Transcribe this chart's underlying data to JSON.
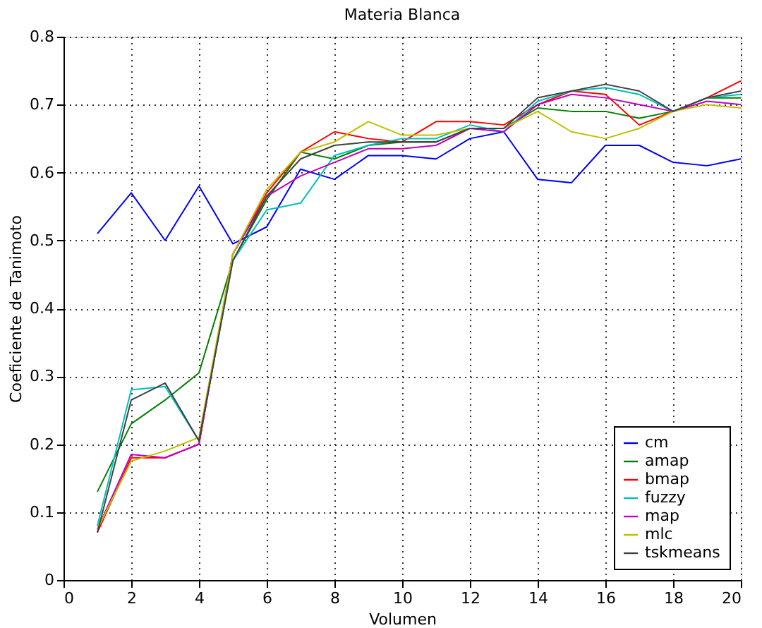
{
  "chart_data": {
    "type": "line",
    "title": "Materia Blanca",
    "xlabel": "Volumen",
    "ylabel": "Coeficiente de Tanimoto",
    "x": [
      1,
      2,
      3,
      4,
      5,
      6,
      7,
      8,
      9,
      10,
      11,
      12,
      13,
      14,
      15,
      16,
      17,
      18,
      19,
      20
    ],
    "series": [
      {
        "name": "cm",
        "color": "#0000ff",
        "values": [
          0.51,
          0.57,
          0.5,
          0.58,
          0.495,
          0.52,
          0.605,
          0.59,
          0.625,
          0.625,
          0.62,
          0.65,
          0.66,
          0.59,
          0.585,
          0.64,
          0.64,
          0.615,
          0.61,
          0.62
        ]
      },
      {
        "name": "amap",
        "color": "#008000",
        "values": [
          0.13,
          0.23,
          0.265,
          0.305,
          0.47,
          0.56,
          0.63,
          0.62,
          0.64,
          0.645,
          0.645,
          0.665,
          0.665,
          0.695,
          0.69,
          0.69,
          0.68,
          0.69,
          0.71,
          0.71
        ]
      },
      {
        "name": "bmap",
        "color": "#ff0000",
        "values": [
          0.07,
          0.18,
          0.18,
          0.2,
          0.48,
          0.57,
          0.63,
          0.66,
          0.65,
          0.645,
          0.675,
          0.675,
          0.67,
          0.7,
          0.72,
          0.715,
          0.67,
          0.69,
          0.71,
          0.735
        ]
      },
      {
        "name": "fuzzy",
        "color": "#00bfbf",
        "values": [
          0.08,
          0.28,
          0.285,
          0.205,
          0.47,
          0.545,
          0.555,
          0.625,
          0.64,
          0.65,
          0.65,
          0.67,
          0.66,
          0.705,
          0.72,
          0.725,
          0.715,
          0.69,
          0.71,
          0.715
        ]
      },
      {
        "name": "map",
        "color": "#bf00bf",
        "values": [
          0.075,
          0.185,
          0.18,
          0.2,
          0.48,
          0.565,
          0.595,
          0.615,
          0.635,
          0.635,
          0.64,
          0.665,
          0.66,
          0.7,
          0.715,
          0.71,
          0.7,
          0.69,
          0.705,
          0.7
        ]
      },
      {
        "name": "mlc",
        "color": "#bfbf00",
        "values": [
          0.075,
          0.175,
          0.19,
          0.21,
          0.48,
          0.575,
          0.63,
          0.645,
          0.675,
          0.655,
          0.655,
          0.665,
          0.665,
          0.69,
          0.66,
          0.65,
          0.665,
          0.69,
          0.7,
          0.695
        ]
      },
      {
        "name": "tskmeans",
        "color": "#404040",
        "values": [
          0.07,
          0.265,
          0.29,
          0.205,
          0.47,
          0.565,
          0.62,
          0.64,
          0.645,
          0.645,
          0.645,
          0.665,
          0.665,
          0.71,
          0.72,
          0.73,
          0.72,
          0.69,
          0.71,
          0.72
        ]
      }
    ],
    "xlim": [
      0,
      20
    ],
    "xticks": [
      0,
      2,
      4,
      6,
      8,
      10,
      12,
      14,
      16,
      18,
      20
    ],
    "ylim": [
      0,
      0.8
    ],
    "yticks": [
      0,
      0.1,
      0.2,
      0.3,
      0.4,
      0.5,
      0.6,
      0.7,
      0.8
    ],
    "grid": true,
    "legend": "bottom right",
    "marker": "none",
    "line_style": "solid"
  }
}
